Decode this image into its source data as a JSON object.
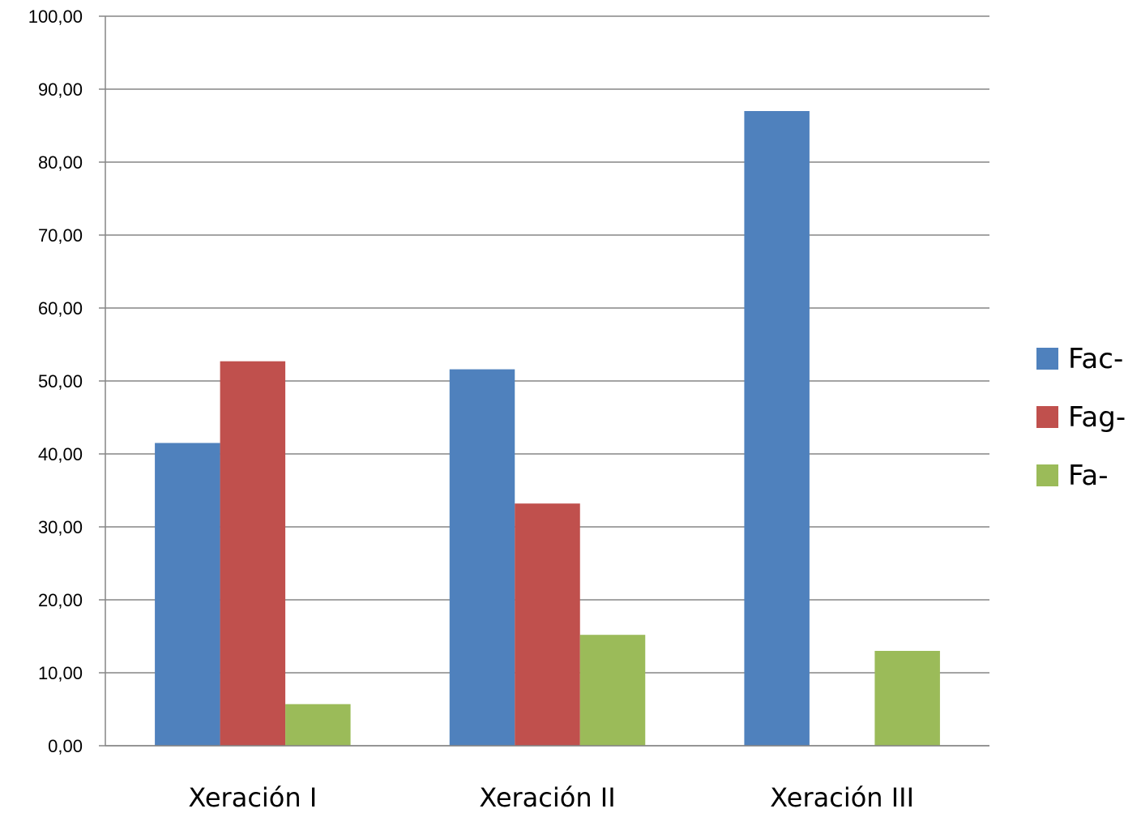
{
  "chart_data": {
    "type": "bar",
    "title": "",
    "xlabel": "",
    "ylabel": "",
    "categories": [
      "Xeración I",
      "Xeración II",
      "Xeración III"
    ],
    "series": [
      {
        "name": "Fac-",
        "color": "#4F81BD",
        "values": [
          41.5,
          51.6,
          87.0
        ]
      },
      {
        "name": "Fag-",
        "color": "#C0504D",
        "values": [
          52.7,
          33.2,
          0.0
        ]
      },
      {
        "name": "Fa-",
        "color": "#9BBB59",
        "values": [
          5.7,
          15.2,
          13.0
        ]
      }
    ],
    "ylim": [
      0,
      100
    ],
    "yticks": [
      "0,00",
      "10,00",
      "20,00",
      "30,00",
      "40,00",
      "50,00",
      "60,00",
      "70,00",
      "80,00",
      "90,00",
      "100,00"
    ],
    "grid": true,
    "legend_position": "right"
  }
}
